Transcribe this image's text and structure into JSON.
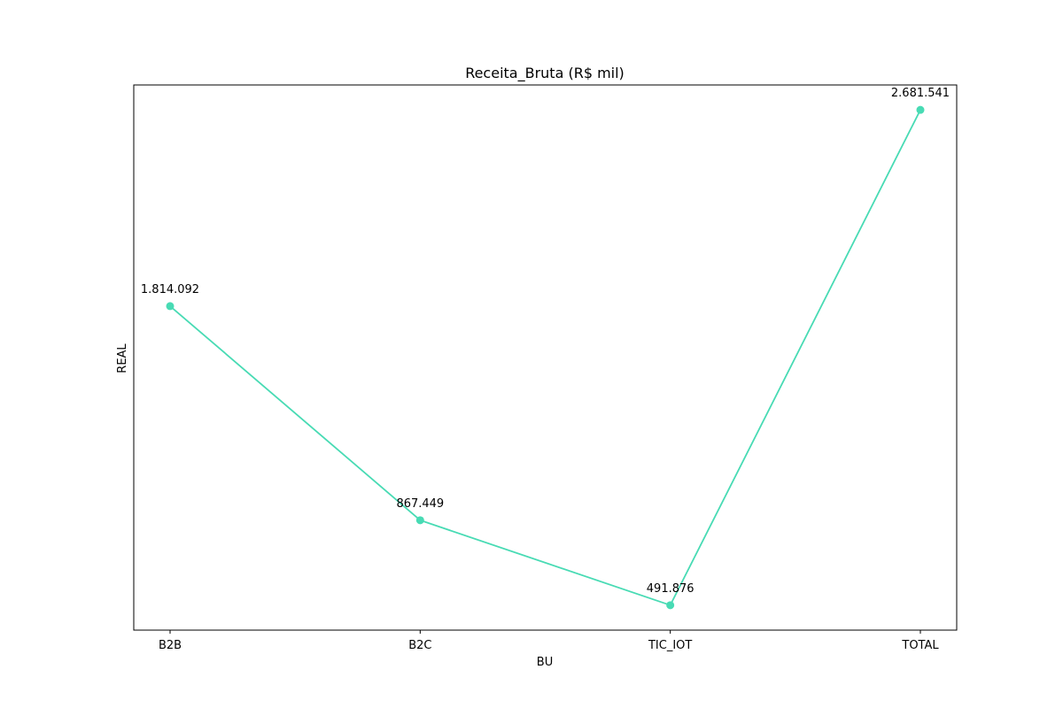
{
  "chart_data": {
    "type": "line",
    "title": "Receita_Bruta (R$ mil)",
    "xlabel": "BU",
    "ylabel": "REAL",
    "categories": [
      "B2B",
      "B2C",
      "TIC_IOT",
      "TOTAL"
    ],
    "series": [
      {
        "values": [
          1814092,
          867449,
          491876,
          2681541
        ],
        "color": "#48dbb4"
      }
    ],
    "data_labels": [
      "1.814.092",
      "867.449",
      "491.876",
      "2.681.541"
    ],
    "ylim": [
      381593,
      2791824
    ],
    "y_ticks_visible": false,
    "grid": false,
    "legend": "none",
    "marker": "circle"
  }
}
